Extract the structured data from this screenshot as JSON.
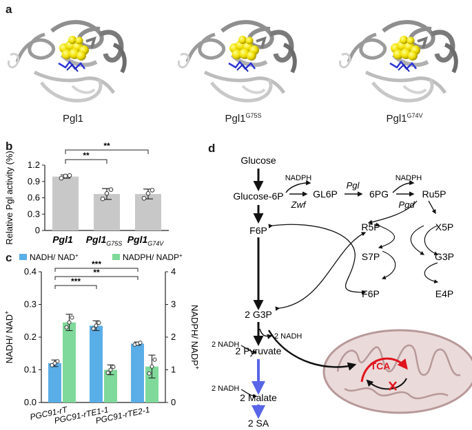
{
  "panel_a": {
    "letter": "a",
    "structures": [
      {
        "name": "Pgl1",
        "sup": ""
      },
      {
        "name": "Pgl1",
        "sup": "G75S"
      },
      {
        "name": "Pgl1",
        "sup": "G74V"
      }
    ]
  },
  "panel_b": {
    "letter": "b",
    "chart_data": {
      "type": "bar",
      "ylabel": "Relative Pgl activity (%)",
      "ylim": [
        0,
        1.2
      ],
      "yticks": [
        "0",
        "0.3",
        "0.6",
        "0.9",
        "1.2"
      ],
      "categories": [
        {
          "base": "Pgl1",
          "sub": ""
        },
        {
          "base": "Pgl1",
          "sub": "G75S"
        },
        {
          "base": "Pgl1",
          "sub": "G74V"
        }
      ],
      "values": [
        0.99,
        0.67,
        0.67
      ],
      "errors": [
        0.03,
        0.1,
        0.09
      ],
      "points": [
        [
          0.96,
          1.0,
          1.01
        ],
        [
          0.58,
          0.68,
          0.75
        ],
        [
          0.59,
          0.68,
          0.74
        ]
      ],
      "bar_color": "#c8c8c8",
      "significance": [
        {
          "from": 0,
          "to": 1,
          "label": "**"
        },
        {
          "from": 0,
          "to": 2,
          "label": "**"
        }
      ]
    }
  },
  "panel_c": {
    "letter": "c",
    "chart_data": {
      "type": "bar",
      "ylabel_left": "NADH/ NAD",
      "ylabel_left_sup": "+",
      "ylabel_right": "NADPH/ NADP",
      "ylabel_right_sup": "+",
      "ylim_left": [
        0,
        0.4
      ],
      "ylim_right": [
        0,
        4
      ],
      "yticks_left": [
        "0.0",
        "0.1",
        "0.2",
        "0.3",
        "0.4"
      ],
      "yticks_right": [
        "0",
        "1",
        "2",
        "3",
        "4"
      ],
      "categories": [
        "PGC91-rT",
        "PGC91-rTE1-1",
        "PGC91-rTE2-1"
      ],
      "series": [
        {
          "name": "NADH/ NAD",
          "sup": "+",
          "color": "#5aaee8",
          "axis": "left",
          "values": [
            0.12,
            0.235,
            0.18
          ],
          "errors": [
            0.01,
            0.015,
            0.005
          ]
        },
        {
          "name": "NADPH/ NADP",
          "sup": "+",
          "color": "#7fd99a",
          "axis": "right",
          "values": [
            2.45,
            1.0,
            1.1
          ],
          "errors": [
            0.25,
            0.15,
            0.35
          ]
        }
      ],
      "significance": [
        {
          "from": 0,
          "to": 1,
          "label": "***"
        },
        {
          "from": 0,
          "to": 2,
          "label": "**"
        },
        {
          "from": 0,
          "to": 2,
          "label": "***"
        }
      ]
    }
  },
  "panel_d": {
    "letter": "d",
    "nodes": {
      "glucose": "Glucose",
      "glucose6p": "Glucose-6P",
      "gl6p": "GL6P",
      "pg6": "6PG",
      "ru5p": "Ru5P",
      "f6p_left": "F6P",
      "r5p": "R5P",
      "x5p": "X5P",
      "s7p": "S7P",
      "g3p_right": "G3P",
      "f6p_right": "F6P",
      "e4p": "E4P",
      "g3p2": "2 G3P",
      "pyruvate2": "2 Pyruvate",
      "malate2": "2 Malate",
      "sa2": "2 SA",
      "tca": "TCA"
    },
    "cofactors": {
      "nadph1": "NADPH",
      "nadph2": "NADPH",
      "nadh_g3p": "2 NADH",
      "nadh_pyr": "2 NADH",
      "nadh_mal": "2 NADH"
    },
    "enzymes": {
      "zwf": "Zwf",
      "pgl": "Pgl",
      "pgd": "Pgd"
    },
    "colors": {
      "tca": "#e0141c",
      "reductive": "#5865e8",
      "mito_fill": "#eadada",
      "mito_stroke": "#b89898"
    }
  }
}
